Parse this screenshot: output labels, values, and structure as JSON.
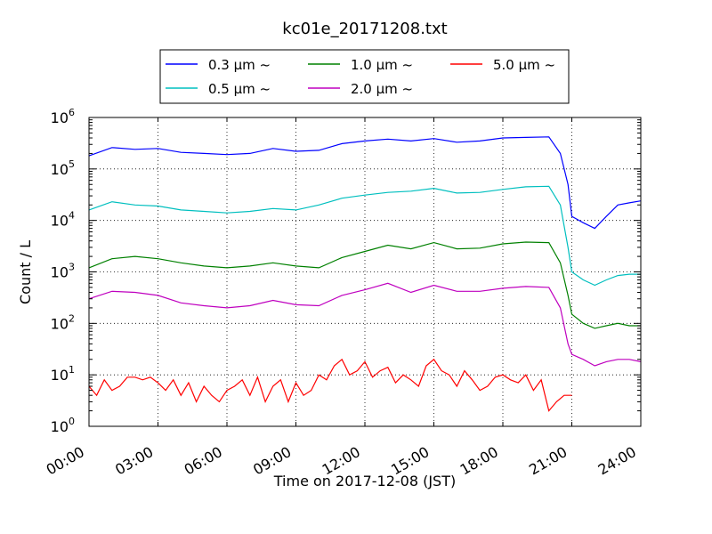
{
  "chart_data": {
    "type": "line",
    "title": "kc01e_20171208.txt",
    "xlabel": "Time on 2017-12-08 (JST)",
    "ylabel": "Count / L",
    "yscale": "log",
    "xlim": [
      "00:00",
      "24:00"
    ],
    "ylim": [
      1,
      1000000
    ],
    "grid": true,
    "legend_position": "top-center, above plot",
    "x_ticks": [
      "00:00",
      "03:00",
      "06:00",
      "09:00",
      "12:00",
      "15:00",
      "18:00",
      "21:00",
      "24:00"
    ],
    "y_ticks": [
      {
        "value": 1,
        "base": "10",
        "exp": "0"
      },
      {
        "value": 10,
        "base": "10",
        "exp": "1"
      },
      {
        "value": 100,
        "base": "10",
        "exp": "2"
      },
      {
        "value": 1000,
        "base": "10",
        "exp": "3"
      },
      {
        "value": 10000,
        "base": "10",
        "exp": "4"
      },
      {
        "value": 100000,
        "base": "10",
        "exp": "5"
      },
      {
        "value": 1000000,
        "base": "10",
        "exp": "6"
      }
    ],
    "series": [
      {
        "name": "0.3 μm ~",
        "color": "#0000ff",
        "x": [
          "00:00",
          "01:00",
          "02:00",
          "03:00",
          "04:00",
          "05:00",
          "06:00",
          "07:00",
          "08:00",
          "09:00",
          "10:00",
          "11:00",
          "12:00",
          "13:00",
          "14:00",
          "15:00",
          "16:00",
          "17:00",
          "18:00",
          "19:00",
          "20:00",
          "20:30",
          "20:50",
          "21:00",
          "21:30",
          "22:00",
          "22:30",
          "23:00",
          "23:30",
          "24:00"
        ],
        "values": [
          180000,
          260000,
          240000,
          250000,
          210000,
          200000,
          190000,
          200000,
          250000,
          220000,
          230000,
          310000,
          350000,
          380000,
          350000,
          390000,
          330000,
          350000,
          400000,
          410000,
          420000,
          200000,
          50000,
          12000,
          9000,
          7000,
          12000,
          20000,
          22000,
          24000
        ]
      },
      {
        "name": "0.5 μm ~",
        "color": "#00bfbf",
        "x": [
          "00:00",
          "01:00",
          "02:00",
          "03:00",
          "04:00",
          "05:00",
          "06:00",
          "07:00",
          "08:00",
          "09:00",
          "10:00",
          "11:00",
          "12:00",
          "13:00",
          "14:00",
          "15:00",
          "16:00",
          "17:00",
          "18:00",
          "19:00",
          "20:00",
          "20:30",
          "20:50",
          "21:00",
          "21:30",
          "22:00",
          "22:30",
          "23:00",
          "23:30",
          "24:00"
        ],
        "values": [
          16000,
          23000,
          20000,
          19000,
          16000,
          15000,
          14000,
          15000,
          17000,
          16000,
          20000,
          27000,
          31000,
          35000,
          37000,
          42000,
          34000,
          35000,
          40000,
          45000,
          46000,
          20000,
          3000,
          1000,
          700,
          550,
          700,
          850,
          900,
          900
        ]
      },
      {
        "name": "1.0 μm ~",
        "color": "#008000",
        "x": [
          "00:00",
          "01:00",
          "02:00",
          "03:00",
          "04:00",
          "05:00",
          "06:00",
          "07:00",
          "08:00",
          "09:00",
          "10:00",
          "11:00",
          "12:00",
          "13:00",
          "14:00",
          "15:00",
          "16:00",
          "17:00",
          "18:00",
          "19:00",
          "20:00",
          "20:30",
          "20:50",
          "21:00",
          "21:30",
          "22:00",
          "22:30",
          "23:00",
          "23:30",
          "24:00"
        ],
        "values": [
          1200,
          1800,
          2000,
          1800,
          1500,
          1300,
          1200,
          1300,
          1500,
          1300,
          1200,
          1900,
          2500,
          3300,
          2800,
          3700,
          2800,
          2900,
          3500,
          3800,
          3700,
          1500,
          350,
          150,
          100,
          80,
          90,
          100,
          90,
          90
        ]
      },
      {
        "name": "2.0 μm ~",
        "color": "#bf00bf",
        "x": [
          "00:00",
          "01:00",
          "02:00",
          "03:00",
          "04:00",
          "05:00",
          "06:00",
          "07:00",
          "08:00",
          "09:00",
          "10:00",
          "11:00",
          "12:00",
          "13:00",
          "14:00",
          "15:00",
          "16:00",
          "17:00",
          "18:00",
          "19:00",
          "20:00",
          "20:30",
          "20:50",
          "21:00",
          "21:30",
          "22:00",
          "22:30",
          "23:00",
          "23:30",
          "24:00"
        ],
        "values": [
          300,
          420,
          400,
          350,
          250,
          220,
          200,
          220,
          280,
          230,
          220,
          350,
          450,
          600,
          400,
          550,
          420,
          420,
          480,
          520,
          500,
          200,
          40,
          25,
          20,
          15,
          18,
          20,
          20,
          18
        ]
      },
      {
        "name": "5.0 μm ~",
        "color": "#ff0000",
        "x": [
          "00:00",
          "00:20",
          "00:40",
          "01:00",
          "01:20",
          "01:40",
          "02:00",
          "02:20",
          "02:40",
          "03:00",
          "03:20",
          "03:40",
          "04:00",
          "04:20",
          "04:40",
          "05:00",
          "05:20",
          "05:40",
          "06:00",
          "06:20",
          "06:40",
          "07:00",
          "07:20",
          "07:40",
          "08:00",
          "08:20",
          "08:40",
          "09:00",
          "09:20",
          "09:40",
          "10:00",
          "10:20",
          "10:40",
          "11:00",
          "11:20",
          "11:40",
          "12:00",
          "12:20",
          "12:40",
          "13:00",
          "13:20",
          "13:40",
          "14:00",
          "14:20",
          "14:40",
          "15:00",
          "15:20",
          "15:40",
          "16:00",
          "16:20",
          "16:40",
          "17:00",
          "17:20",
          "17:40",
          "18:00",
          "18:20",
          "18:40",
          "19:00",
          "19:20",
          "19:40",
          "20:00",
          "20:20",
          "20:40",
          "21:00"
        ],
        "values": [
          6,
          4,
          8,
          5,
          6,
          9,
          9,
          8,
          9,
          7,
          5,
          8,
          4,
          7,
          3,
          6,
          4,
          3,
          5,
          6,
          8,
          4,
          9,
          3,
          6,
          8,
          3,
          7,
          4,
          5,
          10,
          8,
          15,
          20,
          10,
          12,
          18,
          9,
          12,
          14,
          7,
          10,
          8,
          6,
          15,
          20,
          12,
          10,
          6,
          12,
          8,
          5,
          6,
          9,
          10,
          8,
          7,
          10,
          5,
          8,
          2,
          3,
          4,
          4
        ]
      }
    ]
  }
}
